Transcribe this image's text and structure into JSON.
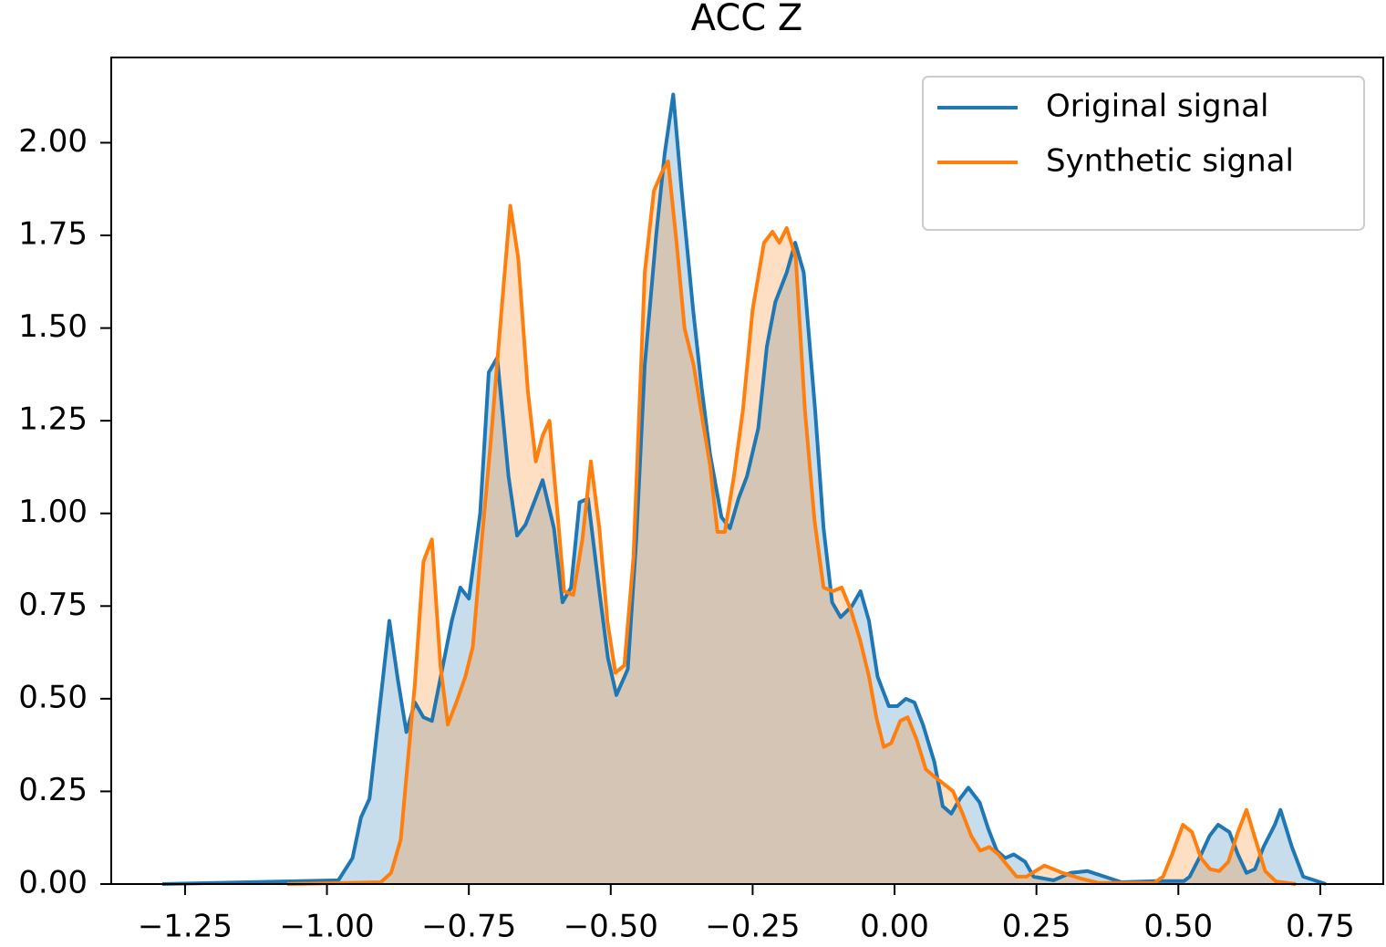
{
  "chart_data": {
    "type": "area",
    "title": "ACC Z",
    "xlim": [
      -1.38,
      0.861
    ],
    "ylim": [
      0,
      2.23
    ],
    "xticks": [
      {
        "value": -1.25,
        "label": "−1.25"
      },
      {
        "value": -1.0,
        "label": "−1.00"
      },
      {
        "value": -0.75,
        "label": "−0.75"
      },
      {
        "value": -0.5,
        "label": "−0.50"
      },
      {
        "value": -0.25,
        "label": "−0.25"
      },
      {
        "value": 0,
        "label": "0.00"
      },
      {
        "value": 0.25,
        "label": "0.25"
      },
      {
        "value": 0.5,
        "label": "0.50"
      },
      {
        "value": 0.75,
        "label": "0.75"
      }
    ],
    "yticks": [
      {
        "value": 0,
        "label": "0.00"
      },
      {
        "value": 0.25,
        "label": "0.25"
      },
      {
        "value": 0.5,
        "label": "0.50"
      },
      {
        "value": 0.75,
        "label": "0.75"
      },
      {
        "value": 1.0,
        "label": "1.00"
      },
      {
        "value": 1.25,
        "label": "1.25"
      },
      {
        "value": 1.5,
        "label": "1.50"
      },
      {
        "value": 1.75,
        "label": "1.75"
      },
      {
        "value": 2.0,
        "label": "2.00"
      }
    ],
    "legend": "upper right",
    "series": [
      {
        "name": "Original signal",
        "color": "#1f77b4",
        "x": [
          -1.29,
          -0.98,
          -0.955,
          -0.94,
          -0.925,
          -0.89,
          -0.875,
          -0.86,
          -0.845,
          -0.83,
          -0.815,
          -0.78,
          -0.765,
          -0.75,
          -0.73,
          -0.715,
          -0.7,
          -0.68,
          -0.665,
          -0.65,
          -0.635,
          -0.62,
          -0.6,
          -0.585,
          -0.57,
          -0.555,
          -0.54,
          -0.52,
          -0.505,
          -0.49,
          -0.47,
          -0.455,
          -0.44,
          -0.42,
          -0.405,
          -0.39,
          -0.375,
          -0.355,
          -0.34,
          -0.325,
          -0.305,
          -0.29,
          -0.275,
          -0.26,
          -0.24,
          -0.225,
          -0.21,
          -0.19,
          -0.175,
          -0.16,
          -0.14,
          -0.125,
          -0.11,
          -0.095,
          -0.075,
          -0.06,
          -0.045,
          -0.03,
          -0.01,
          0.005,
          0.02,
          0.035,
          0.05,
          0.07,
          0.085,
          0.1,
          0.115,
          0.13,
          0.15,
          0.165,
          0.18,
          0.195,
          0.21,
          0.23,
          0.245,
          0.28,
          0.31,
          0.34,
          0.37,
          0.4,
          0.46,
          0.51,
          0.52,
          0.54,
          0.555,
          0.57,
          0.59,
          0.605,
          0.62,
          0.635,
          0.65,
          0.67,
          0.68,
          0.7,
          0.72,
          0.76
        ],
        "values": [
          0,
          0.01,
          0.07,
          0.18,
          0.23,
          0.71,
          0.55,
          0.41,
          0.49,
          0.45,
          0.44,
          0.71,
          0.8,
          0.77,
          1.0,
          1.38,
          1.42,
          1.1,
          0.94,
          0.97,
          1.03,
          1.09,
          0.96,
          0.76,
          0.8,
          1.03,
          1.04,
          0.79,
          0.61,
          0.51,
          0.58,
          0.93,
          1.4,
          1.75,
          1.97,
          2.13,
          1.87,
          1.55,
          1.34,
          1.16,
          0.99,
          0.96,
          1.04,
          1.1,
          1.23,
          1.45,
          1.57,
          1.65,
          1.73,
          1.65,
          1.28,
          0.96,
          0.76,
          0.72,
          0.75,
          0.79,
          0.71,
          0.56,
          0.48,
          0.48,
          0.5,
          0.49,
          0.43,
          0.33,
          0.21,
          0.19,
          0.23,
          0.26,
          0.22,
          0.15,
          0.09,
          0.07,
          0.08,
          0.06,
          0.02,
          0.01,
          0.03,
          0.035,
          0.02,
          0.005,
          0.008,
          0.008,
          0.02,
          0.08,
          0.13,
          0.16,
          0.14,
          0.08,
          0.03,
          0.04,
          0.1,
          0.16,
          0.2,
          0.1,
          0.02,
          0
        ]
      },
      {
        "name": "Synthetic signal",
        "color": "#ff7f0e",
        "x": [
          -1.07,
          -0.905,
          -0.887,
          -0.87,
          -0.86,
          -0.845,
          -0.83,
          -0.815,
          -0.8,
          -0.787,
          -0.772,
          -0.756,
          -0.743,
          -0.727,
          -0.711,
          -0.695,
          -0.677,
          -0.663,
          -0.646,
          -0.632,
          -0.62,
          -0.608,
          -0.595,
          -0.582,
          -0.566,
          -0.55,
          -0.535,
          -0.52,
          -0.506,
          -0.492,
          -0.476,
          -0.46,
          -0.44,
          -0.424,
          -0.41,
          -0.399,
          -0.384,
          -0.37,
          -0.354,
          -0.338,
          -0.325,
          -0.312,
          -0.299,
          -0.283,
          -0.267,
          -0.25,
          -0.23,
          -0.215,
          -0.203,
          -0.19,
          -0.174,
          -0.158,
          -0.141,
          -0.125,
          -0.109,
          -0.093,
          -0.077,
          -0.061,
          -0.045,
          -0.032,
          -0.019,
          -0.006,
          0.01,
          0.023,
          0.039,
          0.055,
          0.07,
          0.087,
          0.103,
          0.12,
          0.135,
          0.151,
          0.167,
          0.183,
          0.199,
          0.215,
          0.232,
          0.248,
          0.264,
          0.28,
          0.296,
          0.328,
          0.36,
          0.457,
          0.473,
          0.489,
          0.508,
          0.524,
          0.54,
          0.556,
          0.572,
          0.588,
          0.605,
          0.62,
          0.636,
          0.653,
          0.672,
          0.707
        ],
        "values": [
          0,
          0.005,
          0.03,
          0.12,
          0.29,
          0.54,
          0.87,
          0.93,
          0.59,
          0.43,
          0.49,
          0.56,
          0.64,
          0.93,
          1.2,
          1.5,
          1.83,
          1.69,
          1.33,
          1.14,
          1.21,
          1.25,
          1.02,
          0.79,
          0.78,
          0.93,
          1.14,
          0.96,
          0.71,
          0.57,
          0.59,
          0.88,
          1.65,
          1.87,
          1.92,
          1.95,
          1.73,
          1.5,
          1.4,
          1.25,
          1.13,
          0.95,
          0.95,
          1.1,
          1.28,
          1.55,
          1.73,
          1.76,
          1.73,
          1.77,
          1.69,
          1.28,
          0.98,
          0.8,
          0.79,
          0.8,
          0.74,
          0.66,
          0.56,
          0.45,
          0.37,
          0.38,
          0.44,
          0.45,
          0.39,
          0.31,
          0.29,
          0.27,
          0.25,
          0.19,
          0.13,
          0.09,
          0.1,
          0.08,
          0.05,
          0.02,
          0.02,
          0.035,
          0.05,
          0.04,
          0.03,
          0.015,
          0.003,
          0.003,
          0.02,
          0.08,
          0.16,
          0.14,
          0.07,
          0.04,
          0.035,
          0.06,
          0.14,
          0.2,
          0.12,
          0.035,
          0.007,
          0
        ]
      }
    ]
  }
}
